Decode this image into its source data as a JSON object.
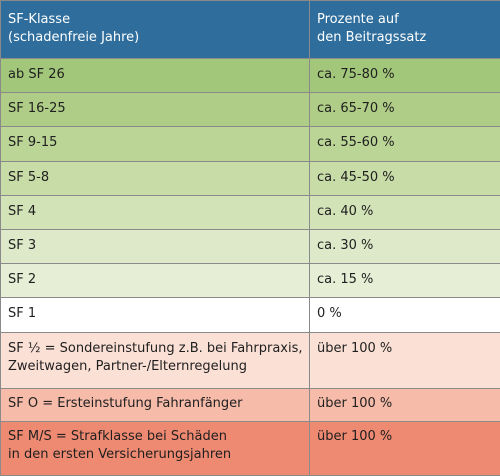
{
  "header": {
    "col1_line1": "SF-Klasse",
    "col1_line2": "(schadenfreie Jahre)",
    "col2_line1": "Prozente auf",
    "col2_line2": "den Beitragssatz"
  },
  "colors": {
    "header": "#2f6e9c",
    "sf26": "#a3c77a",
    "sf16_25": "#afcd86",
    "sf9_15": "#bbd596",
    "sf5_8": "#c8dca8",
    "sf4": "#d3e3b8",
    "sf3": "#dde9c8",
    "sf2": "#e6efd6",
    "sf1": "#ffffff",
    "sf_half": "#fbe0d6",
    "sf_o": "#f6bba9",
    "sf_ms": "#ef8a72"
  },
  "rows": [
    {
      "cls": "ab SF 26",
      "pct": "ca. 75-80 %"
    },
    {
      "cls": "SF 16-25",
      "pct": "ca. 65-70 %"
    },
    {
      "cls": "SF 9-15",
      "pct": "ca. 55-60 %"
    },
    {
      "cls": "SF 5-8",
      "pct": "ca. 45-50 %"
    },
    {
      "cls": "SF 4",
      "pct": "ca. 40 %"
    },
    {
      "cls": "SF 3",
      "pct": "ca. 30 %"
    },
    {
      "cls": "SF 2",
      "pct": "ca. 15 %"
    },
    {
      "cls": "SF 1",
      "pct": "0 %"
    },
    {
      "cls_line1": "SF ½ = Sondereinstufung z.B. bei Fahrpraxis,",
      "cls_line2": "Zweitwagen, Partner-/Elternregelung",
      "pct": "über 100 %"
    },
    {
      "cls": "SF O = Ersteinstufung Fahranfänger",
      "pct": "über 100 %"
    },
    {
      "cls_line1": "SF M/S = Strafklasse bei Schäden",
      "cls_line2": "in den ersten Versicherungsjahren",
      "pct": "über 100 %"
    }
  ]
}
